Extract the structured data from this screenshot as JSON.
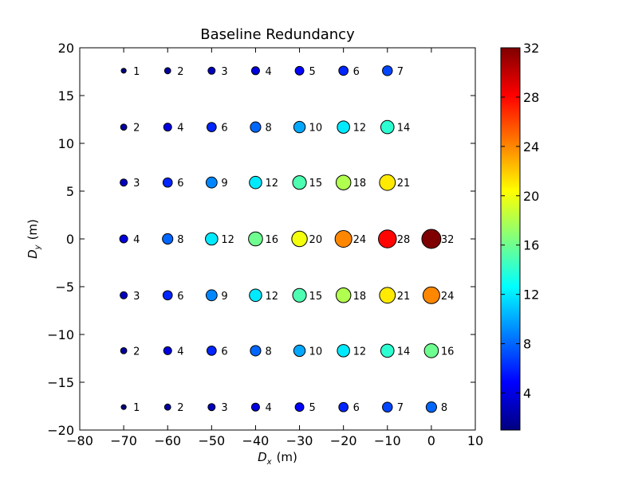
{
  "chart_data": {
    "type": "scatter",
    "title": "Baseline Redundancy",
    "xlabel_var": "D",
    "xlabel_sub": "x",
    "xlabel_unit": "(m)",
    "ylabel_var": "D",
    "ylabel_sub": "y",
    "ylabel_unit": "(m)",
    "xlim": [
      -80,
      10
    ],
    "ylim": [
      -20,
      20
    ],
    "xticks": [
      -80,
      -70,
      -60,
      -50,
      -40,
      -30,
      -20,
      -10,
      0,
      10
    ],
    "yticks": [
      -20,
      -15,
      -10,
      -5,
      0,
      5,
      10,
      15,
      20
    ],
    "x_tick_labels": [
      "−80",
      "−70",
      "−60",
      "−50",
      "−40",
      "−30",
      "−20",
      "−10",
      "0",
      "10"
    ],
    "y_tick_labels": [
      "−20",
      "−15",
      "−10",
      "−5",
      "0",
      "5",
      "10",
      "15",
      "20"
    ],
    "grid": false,
    "colormap": "jet",
    "colorbar": {
      "range": [
        1,
        32
      ],
      "ticks": [
        4,
        8,
        12,
        16,
        20,
        24,
        28,
        32
      ],
      "tick_labels": [
        "4",
        "8",
        "12",
        "16",
        "20",
        "24",
        "28",
        "32"
      ]
    },
    "colors": {
      "jet_stops": [
        "#00007f",
        "#0000ff",
        "#007fff",
        "#00ffff",
        "#7fff7f",
        "#ffff00",
        "#ff7f00",
        "#ff0000",
        "#7f0000"
      ]
    },
    "points": [
      {
        "x": -70,
        "y": 17.6,
        "value": 1
      },
      {
        "x": -60,
        "y": 17.6,
        "value": 2
      },
      {
        "x": -50,
        "y": 17.6,
        "value": 3
      },
      {
        "x": -40,
        "y": 17.6,
        "value": 4
      },
      {
        "x": -30,
        "y": 17.6,
        "value": 5
      },
      {
        "x": -20,
        "y": 17.6,
        "value": 6
      },
      {
        "x": -10,
        "y": 17.6,
        "value": 7
      },
      {
        "x": -70,
        "y": 11.7,
        "value": 2
      },
      {
        "x": -60,
        "y": 11.7,
        "value": 4
      },
      {
        "x": -50,
        "y": 11.7,
        "value": 6
      },
      {
        "x": -40,
        "y": 11.7,
        "value": 8
      },
      {
        "x": -30,
        "y": 11.7,
        "value": 10
      },
      {
        "x": -20,
        "y": 11.7,
        "value": 12
      },
      {
        "x": -10,
        "y": 11.7,
        "value": 14
      },
      {
        "x": -70,
        "y": 5.9,
        "value": 3
      },
      {
        "x": -60,
        "y": 5.9,
        "value": 6
      },
      {
        "x": -50,
        "y": 5.9,
        "value": 9
      },
      {
        "x": -40,
        "y": 5.9,
        "value": 12
      },
      {
        "x": -30,
        "y": 5.9,
        "value": 15
      },
      {
        "x": -20,
        "y": 5.9,
        "value": 18
      },
      {
        "x": -10,
        "y": 5.9,
        "value": 21
      },
      {
        "x": -70,
        "y": 0,
        "value": 4
      },
      {
        "x": -60,
        "y": 0,
        "value": 8
      },
      {
        "x": -50,
        "y": 0,
        "value": 12
      },
      {
        "x": -40,
        "y": 0,
        "value": 16
      },
      {
        "x": -30,
        "y": 0,
        "value": 20
      },
      {
        "x": -20,
        "y": 0,
        "value": 24
      },
      {
        "x": -10,
        "y": 0,
        "value": 28
      },
      {
        "x": 0,
        "y": 0,
        "value": 32
      },
      {
        "x": -70,
        "y": -5.9,
        "value": 3
      },
      {
        "x": -60,
        "y": -5.9,
        "value": 6
      },
      {
        "x": -50,
        "y": -5.9,
        "value": 9
      },
      {
        "x": -40,
        "y": -5.9,
        "value": 12
      },
      {
        "x": -30,
        "y": -5.9,
        "value": 15
      },
      {
        "x": -20,
        "y": -5.9,
        "value": 18
      },
      {
        "x": -10,
        "y": -5.9,
        "value": 21
      },
      {
        "x": 0,
        "y": -5.9,
        "value": 24
      },
      {
        "x": -70,
        "y": -11.7,
        "value": 2
      },
      {
        "x": -60,
        "y": -11.7,
        "value": 4
      },
      {
        "x": -50,
        "y": -11.7,
        "value": 6
      },
      {
        "x": -40,
        "y": -11.7,
        "value": 8
      },
      {
        "x": -30,
        "y": -11.7,
        "value": 10
      },
      {
        "x": -20,
        "y": -11.7,
        "value": 12
      },
      {
        "x": -10,
        "y": -11.7,
        "value": 14
      },
      {
        "x": 0,
        "y": -11.7,
        "value": 16
      },
      {
        "x": -70,
        "y": -17.6,
        "value": 1
      },
      {
        "x": -60,
        "y": -17.6,
        "value": 2
      },
      {
        "x": -50,
        "y": -17.6,
        "value": 3
      },
      {
        "x": -40,
        "y": -17.6,
        "value": 4
      },
      {
        "x": -30,
        "y": -17.6,
        "value": 5
      },
      {
        "x": -20,
        "y": -17.6,
        "value": 6
      },
      {
        "x": -10,
        "y": -17.6,
        "value": 7
      },
      {
        "x": 0,
        "y": -17.6,
        "value": 8
      }
    ]
  }
}
